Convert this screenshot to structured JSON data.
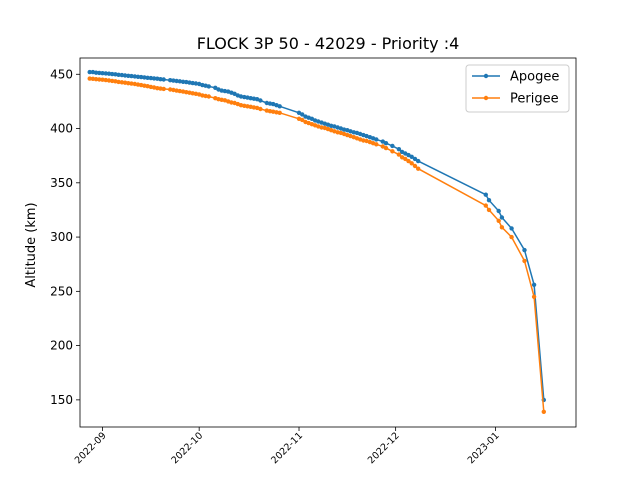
{
  "chart_data": {
    "type": "line",
    "title": "FLOCK 3P 50 - 42029 - Priority :4",
    "xlabel": "",
    "ylabel": "Altitude (km)",
    "xlim": [
      "2022-08-25",
      "2023-01-26"
    ],
    "ylim": [
      125,
      465
    ],
    "x_ticks": [
      "2022-09",
      "2022-10",
      "2022-11",
      "2022-12",
      "2023-01"
    ],
    "y_ticks": [
      150,
      200,
      250,
      300,
      350,
      400,
      450
    ],
    "grid": false,
    "legend_position": "top-right",
    "series": [
      {
        "name": "Apogee",
        "color": "#1f77b4",
        "points": [
          [
            "2022-08-28",
            452
          ],
          [
            "2022-08-29",
            452
          ],
          [
            "2022-08-30",
            451.5
          ],
          [
            "2022-08-31",
            451.3
          ],
          [
            "2022-09-01",
            451
          ],
          [
            "2022-09-02",
            450.8
          ],
          [
            "2022-09-03",
            450.5
          ],
          [
            "2022-09-04",
            450.2
          ],
          [
            "2022-09-05",
            450
          ],
          [
            "2022-09-06",
            449.5
          ],
          [
            "2022-09-07",
            449.2
          ],
          [
            "2022-09-08",
            448.9
          ],
          [
            "2022-09-09",
            448.6
          ],
          [
            "2022-09-10",
            448.3
          ],
          [
            "2022-09-11",
            448
          ],
          [
            "2022-09-12",
            447.7
          ],
          [
            "2022-09-13",
            447.4
          ],
          [
            "2022-09-14",
            447.1
          ],
          [
            "2022-09-15",
            446.8
          ],
          [
            "2022-09-16",
            446.5
          ],
          [
            "2022-09-17",
            446.2
          ],
          [
            "2022-09-18",
            445.9
          ],
          [
            "2022-09-19",
            445.5
          ],
          [
            "2022-09-20",
            445.2
          ],
          [
            "2022-09-22",
            444.5
          ],
          [
            "2022-09-23",
            444.2
          ],
          [
            "2022-09-24",
            443.8
          ],
          [
            "2022-09-25",
            443.5
          ],
          [
            "2022-09-26",
            443.1
          ],
          [
            "2022-09-27",
            442.8
          ],
          [
            "2022-09-28",
            442.3
          ],
          [
            "2022-09-29",
            441.9
          ],
          [
            "2022-09-30",
            441.5
          ],
          [
            "2022-10-01",
            441
          ],
          [
            "2022-10-02",
            440
          ],
          [
            "2022-10-03",
            439.5
          ],
          [
            "2022-10-04",
            438.8
          ],
          [
            "2022-10-06",
            437.5
          ],
          [
            "2022-10-07",
            436
          ],
          [
            "2022-10-08",
            435
          ],
          [
            "2022-10-09",
            434.5
          ],
          [
            "2022-10-10",
            434
          ],
          [
            "2022-10-11",
            433
          ],
          [
            "2022-10-12",
            432
          ],
          [
            "2022-10-13",
            430.5
          ],
          [
            "2022-10-14",
            429.5
          ],
          [
            "2022-10-15",
            429
          ],
          [
            "2022-10-16",
            428.5
          ],
          [
            "2022-10-17",
            428
          ],
          [
            "2022-10-18",
            427.5
          ],
          [
            "2022-10-19",
            427
          ],
          [
            "2022-10-20",
            425.8
          ],
          [
            "2022-10-22",
            423.5
          ],
          [
            "2022-10-23",
            423
          ],
          [
            "2022-10-24",
            422.5
          ],
          [
            "2022-10-25",
            421.5
          ],
          [
            "2022-10-26",
            420.5
          ],
          [
            "2022-11-01",
            414.5
          ],
          [
            "2022-11-02",
            413
          ],
          [
            "2022-11-03",
            411
          ],
          [
            "2022-11-04",
            410
          ],
          [
            "2022-11-05",
            409
          ],
          [
            "2022-11-06",
            407.5
          ],
          [
            "2022-11-07",
            406.5
          ],
          [
            "2022-11-08",
            405.5
          ],
          [
            "2022-11-09",
            404.5
          ],
          [
            "2022-11-10",
            403.5
          ],
          [
            "2022-11-11",
            402.5
          ],
          [
            "2022-11-12",
            402
          ],
          [
            "2022-11-13",
            401
          ],
          [
            "2022-11-14",
            400
          ],
          [
            "2022-11-15",
            399
          ],
          [
            "2022-11-16",
            398.5
          ],
          [
            "2022-11-17",
            397.5
          ],
          [
            "2022-11-18",
            396.5
          ],
          [
            "2022-11-19",
            396
          ],
          [
            "2022-11-20",
            395
          ],
          [
            "2022-11-21",
            394
          ],
          [
            "2022-11-22",
            393
          ],
          [
            "2022-11-23",
            392
          ],
          [
            "2022-11-24",
            391
          ],
          [
            "2022-11-25",
            390
          ],
          [
            "2022-11-27",
            388
          ],
          [
            "2022-11-28",
            386.5
          ],
          [
            "2022-11-30",
            384
          ],
          [
            "2022-12-02",
            381
          ],
          [
            "2022-12-03",
            378.5
          ],
          [
            "2022-12-04",
            377
          ],
          [
            "2022-12-05",
            375.5
          ],
          [
            "2022-12-06",
            374
          ],
          [
            "2022-12-07",
            372
          ],
          [
            "2022-12-08",
            370
          ],
          [
            "2022-12-29",
            339
          ],
          [
            "2022-12-30",
            334
          ],
          [
            "2023-01-02",
            324
          ],
          [
            "2023-01-03",
            318
          ],
          [
            "2023-01-06",
            308
          ],
          [
            "2023-01-10",
            288
          ],
          [
            "2023-01-13",
            256
          ],
          [
            "2023-01-16",
            150
          ]
        ]
      },
      {
        "name": "Perigee",
        "color": "#ff7f0e",
        "points": [
          [
            "2022-08-28",
            446
          ],
          [
            "2022-08-29",
            445.8
          ],
          [
            "2022-08-30",
            445.5
          ],
          [
            "2022-08-31",
            445.2
          ],
          [
            "2022-09-01",
            445
          ],
          [
            "2022-09-02",
            444.6
          ],
          [
            "2022-09-03",
            444.3
          ],
          [
            "2022-09-04",
            443.9
          ],
          [
            "2022-09-05",
            443.5
          ],
          [
            "2022-09-06",
            443
          ],
          [
            "2022-09-07",
            442.6
          ],
          [
            "2022-09-08",
            442.2
          ],
          [
            "2022-09-09",
            441.8
          ],
          [
            "2022-09-10",
            441.4
          ],
          [
            "2022-09-11",
            441
          ],
          [
            "2022-09-12",
            440.5
          ],
          [
            "2022-09-13",
            440
          ],
          [
            "2022-09-14",
            439.5
          ],
          [
            "2022-09-15",
            439
          ],
          [
            "2022-09-16",
            438.4
          ],
          [
            "2022-09-17",
            437.8
          ],
          [
            "2022-09-18",
            437.2
          ],
          [
            "2022-09-19",
            436.8
          ],
          [
            "2022-09-20",
            436.5
          ],
          [
            "2022-09-22",
            436
          ],
          [
            "2022-09-23",
            435.5
          ],
          [
            "2022-09-24",
            435
          ],
          [
            "2022-09-25",
            434.5
          ],
          [
            "2022-09-26",
            434
          ],
          [
            "2022-09-27",
            433.5
          ],
          [
            "2022-09-28",
            433
          ],
          [
            "2022-09-29",
            432.5
          ],
          [
            "2022-09-30",
            432
          ],
          [
            "2022-10-01",
            431.5
          ],
          [
            "2022-10-02",
            430.5
          ],
          [
            "2022-10-03",
            430
          ],
          [
            "2022-10-04",
            429.5
          ],
          [
            "2022-10-06",
            428
          ],
          [
            "2022-10-07",
            427
          ],
          [
            "2022-10-08",
            426.5
          ],
          [
            "2022-10-09",
            426
          ],
          [
            "2022-10-10",
            425
          ],
          [
            "2022-10-11",
            424
          ],
          [
            "2022-10-12",
            423.5
          ],
          [
            "2022-10-13",
            422.5
          ],
          [
            "2022-10-14",
            421.5
          ],
          [
            "2022-10-15",
            421
          ],
          [
            "2022-10-16",
            420.5
          ],
          [
            "2022-10-17",
            420
          ],
          [
            "2022-10-18",
            419.5
          ],
          [
            "2022-10-19",
            419
          ],
          [
            "2022-10-20",
            418
          ],
          [
            "2022-10-22",
            416.5
          ],
          [
            "2022-10-23",
            416
          ],
          [
            "2022-10-24",
            415.5
          ],
          [
            "2022-10-25",
            415
          ],
          [
            "2022-10-26",
            414.5
          ],
          [
            "2022-11-01",
            409
          ],
          [
            "2022-11-02",
            408
          ],
          [
            "2022-11-03",
            406
          ],
          [
            "2022-11-04",
            405
          ],
          [
            "2022-11-05",
            404
          ],
          [
            "2022-11-06",
            403
          ],
          [
            "2022-11-07",
            402
          ],
          [
            "2022-11-08",
            401
          ],
          [
            "2022-11-09",
            400.5
          ],
          [
            "2022-11-10",
            399.5
          ],
          [
            "2022-11-11",
            398.5
          ],
          [
            "2022-11-12",
            397.5
          ],
          [
            "2022-11-13",
            396.5
          ],
          [
            "2022-11-14",
            396
          ],
          [
            "2022-11-15",
            395
          ],
          [
            "2022-11-16",
            394
          ],
          [
            "2022-11-17",
            393
          ],
          [
            "2022-11-18",
            392
          ],
          [
            "2022-11-19",
            391
          ],
          [
            "2022-11-20",
            390
          ],
          [
            "2022-11-21",
            389
          ],
          [
            "2022-11-22",
            388.5
          ],
          [
            "2022-11-23",
            387.5
          ],
          [
            "2022-11-24",
            386.5
          ],
          [
            "2022-11-25",
            385.5
          ],
          [
            "2022-11-27",
            383.5
          ],
          [
            "2022-11-28",
            382
          ],
          [
            "2022-11-30",
            379
          ],
          [
            "2022-12-02",
            376
          ],
          [
            "2022-12-03",
            373.5
          ],
          [
            "2022-12-04",
            372
          ],
          [
            "2022-12-05",
            370
          ],
          [
            "2022-12-06",
            368
          ],
          [
            "2022-12-07",
            365.5
          ],
          [
            "2022-12-08",
            363
          ],
          [
            "2022-12-29",
            329
          ],
          [
            "2022-12-30",
            325
          ],
          [
            "2023-01-02",
            315
          ],
          [
            "2023-01-03",
            309
          ],
          [
            "2023-01-06",
            300
          ],
          [
            "2023-01-10",
            278
          ],
          [
            "2023-01-13",
            245
          ],
          [
            "2023-01-16",
            139
          ]
        ]
      }
    ]
  }
}
